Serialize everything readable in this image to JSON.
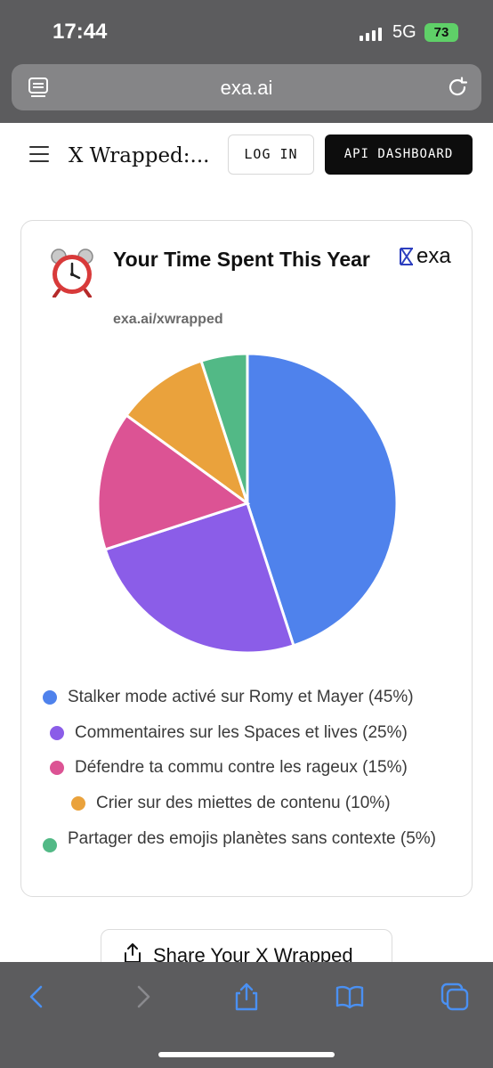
{
  "status": {
    "time": "17:44",
    "network": "5G",
    "battery": "73"
  },
  "browser": {
    "url": "exa.ai"
  },
  "nav": {
    "title": "X Wrapped:...",
    "login_label": "LOG IN",
    "api_label": "API DASHBOARD"
  },
  "card": {
    "title": "Your Time Spent This Year",
    "subtitle": "exa.ai/xwrapped",
    "brand": "exa",
    "icon": "alarm-clock-icon"
  },
  "chart_data": {
    "type": "pie",
    "slices": [
      {
        "label": "Stalker mode activé sur Romy et Mayer (45%)",
        "value": 45,
        "color": "#4f82ec"
      },
      {
        "label": "Commentaires sur les Spaces et lives (25%)",
        "value": 25,
        "color": "#8b5de8"
      },
      {
        "label": "Défendre ta commu contre les rageux (15%)",
        "value": 15,
        "color": "#dc5394"
      },
      {
        "label": "Crier sur des miettes de contenu (10%)",
        "value": 10,
        "color": "#eaa23c"
      },
      {
        "label": "Partager des emojis planètes sans contexte (5%)",
        "value": 5,
        "color": "#52b986"
      }
    ]
  },
  "share": {
    "label": "Share Your X Wrapped"
  },
  "colors": {
    "chrome": "#5c5c5e",
    "accent_blue": "#4a90f2"
  }
}
